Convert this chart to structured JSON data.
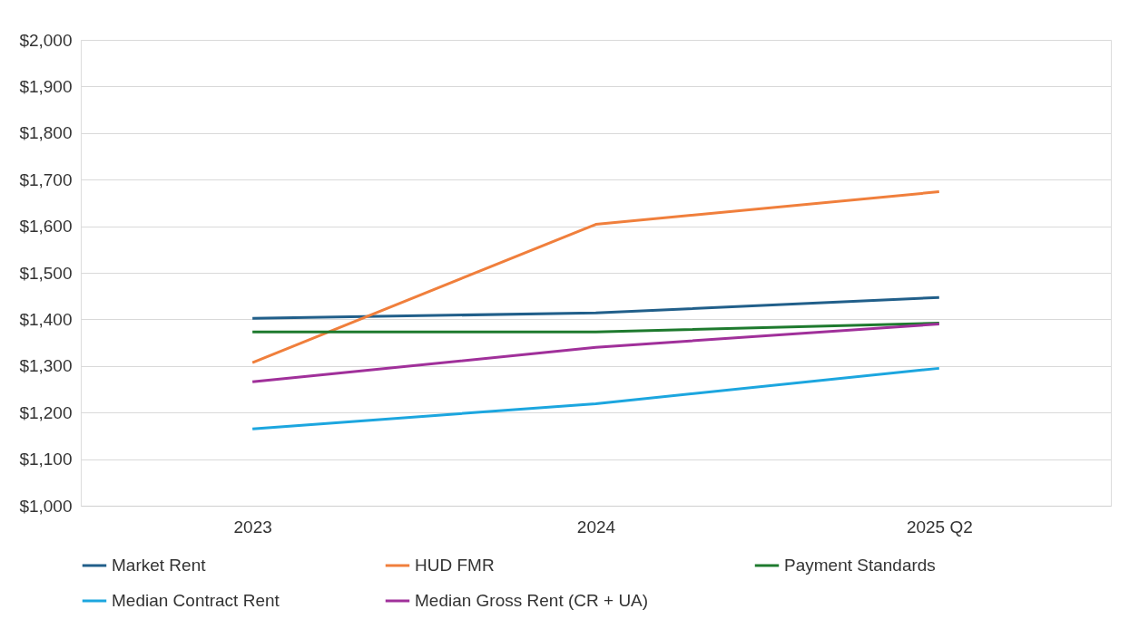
{
  "chart_data": {
    "type": "line",
    "categories": [
      "2023",
      "2024",
      "2025 Q2"
    ],
    "series": [
      {
        "name": "Market Rent",
        "color": "#215f8a",
        "values": [
          1402,
          1414,
          1447
        ]
      },
      {
        "name": "HUD FMR",
        "color": "#f07f3c",
        "values": [
          1307,
          1604,
          1674
        ]
      },
      {
        "name": "Payment Standards",
        "color": "#1e7a2e",
        "values": [
          1373,
          1373,
          1392
        ]
      },
      {
        "name": "Median Contract Rent",
        "color": "#1ca6df",
        "values": [
          1165,
          1219,
          1295
        ]
      },
      {
        "name": "Median Gross Rent (CR + UA)",
        "color": "#a0309a",
        "values": [
          1266,
          1340,
          1390
        ]
      }
    ],
    "ylim": [
      1000,
      2000
    ],
    "yticks": [
      {
        "value": 1000,
        "label": "$1,000"
      },
      {
        "value": 1100,
        "label": "$1,100"
      },
      {
        "value": 1200,
        "label": "$1,200"
      },
      {
        "value": 1300,
        "label": "$1,300"
      },
      {
        "value": 1400,
        "label": "$1,400"
      },
      {
        "value": 1500,
        "label": "$1,500"
      },
      {
        "value": 1600,
        "label": "$1,600"
      },
      {
        "value": 1700,
        "label": "$1,700"
      },
      {
        "value": 1800,
        "label": "$1,800"
      },
      {
        "value": 1900,
        "label": "$1,900"
      },
      {
        "value": 2000,
        "label": "$2,000"
      }
    ],
    "grid": "y",
    "legend": "bottom",
    "marker": "none",
    "line_style": "solid"
  }
}
